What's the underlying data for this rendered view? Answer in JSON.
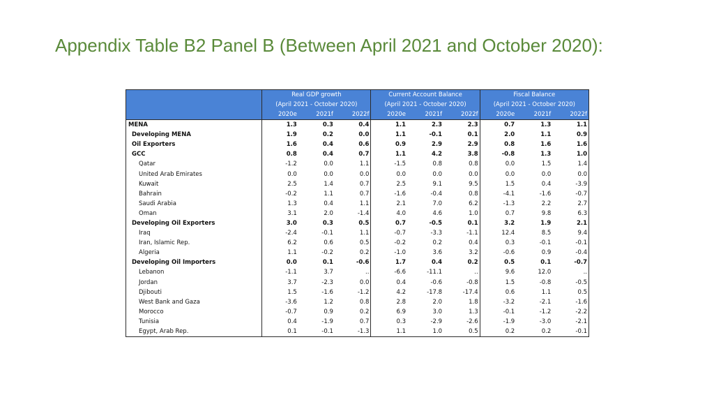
{
  "title": "Appendix Table B2 Panel B (Between April 2021 and October 2020):",
  "table": {
    "groups": [
      {
        "line1": "Real GDP growth",
        "line2": "(April 2021 - October 2020)"
      },
      {
        "line1": "Current Account Balance",
        "line2": "(April 2021 - October 2020)"
      },
      {
        "line1": "Fiscal Balance",
        "line2": "(April 2021 - October 2020)"
      }
    ],
    "years": [
      "2020e",
      "2021f",
      "2022f"
    ],
    "rows": [
      {
        "name": "MENA",
        "level": 0,
        "v": [
          "1.3",
          "0.3",
          "0.4",
          "1.1",
          "2.3",
          "2.3",
          "0.7",
          "1.3",
          "1.1"
        ]
      },
      {
        "name": "Developing MENA",
        "level": 1,
        "v": [
          "1.9",
          "0.2",
          "0.0",
          "1.1",
          "-0.1",
          "0.1",
          "2.0",
          "1.1",
          "0.9"
        ]
      },
      {
        "name": "Oil Exporters",
        "level": 1,
        "v": [
          "1.6",
          "0.4",
          "0.6",
          "0.9",
          "2.9",
          "2.9",
          "0.8",
          "1.6",
          "1.6"
        ]
      },
      {
        "name": "GCC",
        "level": 1,
        "v": [
          "0.8",
          "0.4",
          "0.7",
          "1.1",
          "4.2",
          "3.8",
          "-0.8",
          "1.3",
          "1.0"
        ]
      },
      {
        "name": "Qatar",
        "level": 2,
        "v": [
          "-1.2",
          "0.0",
          "1.1",
          "-1.5",
          "0.8",
          "0.8",
          "0.0",
          "1.5",
          "1.4"
        ]
      },
      {
        "name": "United Arab Emirates",
        "level": 2,
        "v": [
          "0.0",
          "0.0",
          "0.0",
          "0.0",
          "0.0",
          "0.0",
          "0.0",
          "0.0",
          "0.0"
        ]
      },
      {
        "name": "Kuwait",
        "level": 2,
        "v": [
          "2.5",
          "1.4",
          "0.7",
          "2.5",
          "9.1",
          "9.5",
          "1.5",
          "0.4",
          "-3.9"
        ]
      },
      {
        "name": "Bahrain",
        "level": 2,
        "v": [
          "-0.2",
          "1.1",
          "0.7",
          "-1.6",
          "-0.4",
          "0.8",
          "-4.1",
          "-1.6",
          "-0.7"
        ]
      },
      {
        "name": "Saudi Arabia",
        "level": 2,
        "v": [
          "1.3",
          "0.4",
          "1.1",
          "2.1",
          "7.0",
          "6.2",
          "-1.3",
          "2.2",
          "2.7"
        ]
      },
      {
        "name": "Oman",
        "level": 2,
        "v": [
          "3.1",
          "2.0",
          "-1.4",
          "4.0",
          "4.6",
          "1.0",
          "0.7",
          "9.8",
          "6.3"
        ]
      },
      {
        "name": "Developing Oil Exporters",
        "level": 1,
        "v": [
          "3.0",
          "0.3",
          "0.5",
          "0.7",
          "-0.5",
          "0.1",
          "3.2",
          "1.9",
          "2.1"
        ]
      },
      {
        "name": "Iraq",
        "level": 2,
        "v": [
          "-2.4",
          "-0.1",
          "1.1",
          "-0.7",
          "-3.3",
          "-1.1",
          "12.4",
          "8.5",
          "9.4"
        ]
      },
      {
        "name": "Iran, Islamic Rep.",
        "level": 2,
        "v": [
          "6.2",
          "0.6",
          "0.5",
          "-0.2",
          "0.2",
          "0.4",
          "0.3",
          "-0.1",
          "-0.1"
        ]
      },
      {
        "name": "Algeria",
        "level": 2,
        "v": [
          "1.1",
          "-0.2",
          "0.2",
          "-1.0",
          "3.6",
          "3.2",
          "-0.6",
          "0.9",
          "-0.4"
        ]
      },
      {
        "name": "Developing Oil Importers",
        "level": 1,
        "v": [
          "0.0",
          "0.1",
          "-0.6",
          "1.7",
          "0.4",
          "0.2",
          "0.5",
          "0.1",
          "-0.7"
        ]
      },
      {
        "name": "Lebanon",
        "level": 2,
        "v": [
          "-1.1",
          "3.7",
          "..",
          "-6.6",
          "-11.1",
          "..",
          "9.6",
          "12.0",
          ".."
        ]
      },
      {
        "name": "Jordan",
        "level": 2,
        "v": [
          "3.7",
          "-2.3",
          "0.0",
          "0.4",
          "-0.6",
          "-0.8",
          "1.5",
          "-0.8",
          "-0.5"
        ]
      },
      {
        "name": "Djibouti",
        "level": 2,
        "v": [
          "1.5",
          "-1.6",
          "-1.2",
          "4.2",
          "-17.8",
          "-17.4",
          "0.6",
          "1.1",
          "0.5"
        ]
      },
      {
        "name": "West Bank and Gaza",
        "level": 2,
        "v": [
          "-3.6",
          "1.2",
          "0.8",
          "2.8",
          "2.0",
          "1.8",
          "-3.2",
          "-2.1",
          "-1.6"
        ]
      },
      {
        "name": "Morocco",
        "level": 2,
        "v": [
          "-0.7",
          "0.9",
          "0.2",
          "6.9",
          "3.0",
          "1.3",
          "-0.1",
          "-1.2",
          "-2.2"
        ]
      },
      {
        "name": "Tunisia",
        "level": 2,
        "v": [
          "0.4",
          "-1.9",
          "0.7",
          "0.3",
          "-2.9",
          "-2.6",
          "-1.9",
          "-3.0",
          "-2.1"
        ]
      },
      {
        "name": "Egypt, Arab Rep.",
        "level": 2,
        "v": [
          "0.1",
          "-0.1",
          "-1.3",
          "1.1",
          "1.0",
          "0.5",
          "0.2",
          "0.2",
          "-0.1"
        ]
      }
    ]
  }
}
